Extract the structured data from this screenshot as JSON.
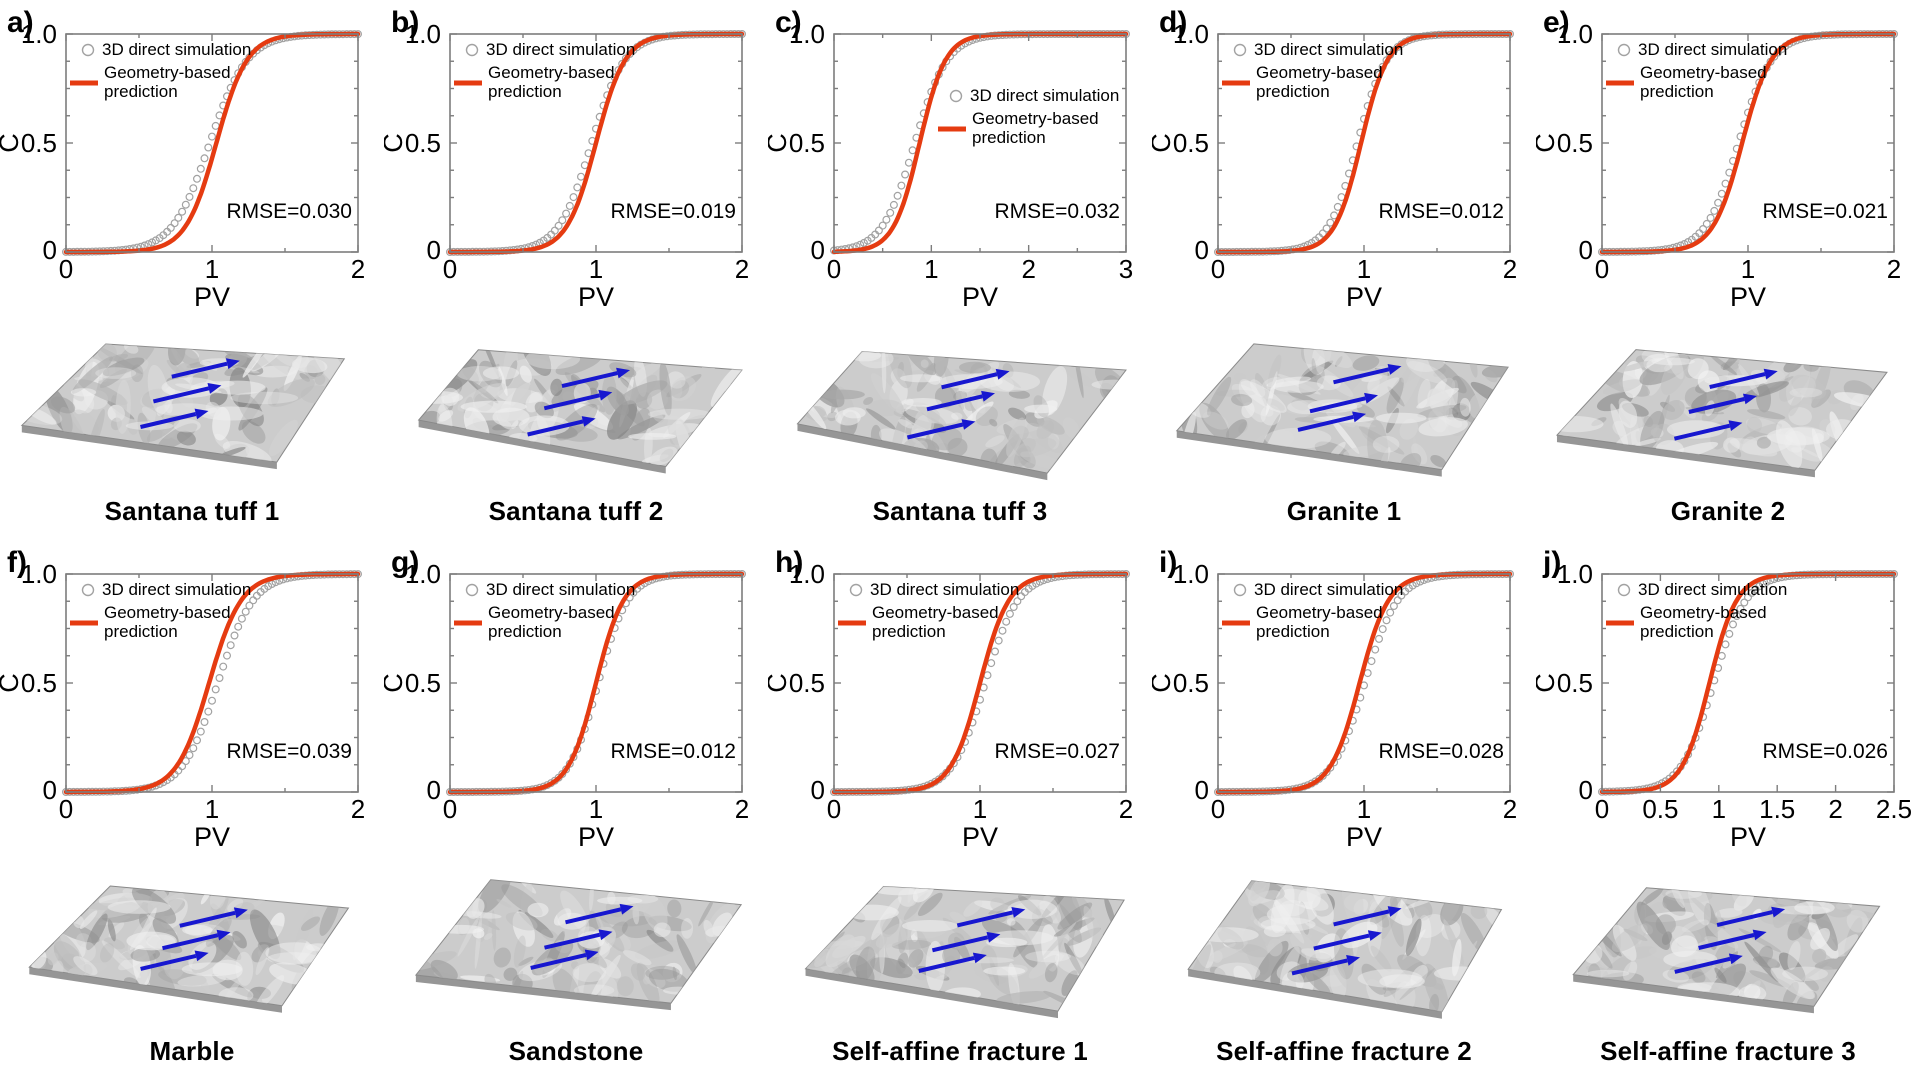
{
  "page": {
    "background": "#ffffff"
  },
  "colors": {
    "prediction_line": "#e53b11",
    "simulation_marker": "#a2a2a2",
    "axis_frame": "#7d7d7d",
    "text": "#000000",
    "flow_arrow": "#1717cf",
    "surface_base": "#cccccc",
    "surface_shadow": "#969696",
    "surface_highlight": "#f0f0f0"
  },
  "legend": {
    "simulation": "3D direct simulation",
    "prediction_line1": "Geometry-based",
    "prediction_line2": "prediction"
  },
  "axis_labels": {
    "x": "PV",
    "y": "C"
  },
  "chart_data": {
    "type": "line",
    "description": "Ten-panel figure (a-j). Each panel: breakthrough curve C vs PV with two sigmoid series (open gray circles = 3D direct simulation; thick orange-red line = geometry-based prediction), an RMSE annotation, a gray 3D fracture-surface rendering with three blue flow arrows, and a bold specimen name.",
    "shared": {
      "xlabel": "PV",
      "ylabel": "C",
      "ylim": [
        0,
        1
      ],
      "ytick_values": [
        0,
        0.5,
        1
      ],
      "ytick_labels": [
        "0",
        "0.5",
        "1.0"
      ],
      "yminor": [
        0.125,
        0.25,
        0.375,
        0.625,
        0.75,
        0.875
      ],
      "legend_entries": [
        "3D direct simulation",
        "Geometry-based prediction"
      ],
      "grid": false,
      "curve_model": "C(PV) = 1/(1+exp(-k*(PV-x0)))"
    },
    "panels": [
      {
        "letter": "a)",
        "specimen": "Santana tuff 1",
        "rmse": "RMSE=0.030",
        "xlim": [
          0,
          2
        ],
        "xtick_values": [
          0,
          1,
          2
        ],
        "xtick_labels": [
          "0",
          "1",
          "2"
        ],
        "xminor": [
          0.5,
          1.5
        ],
        "legend_pos": "upper-left",
        "prediction": {
          "x0": 1.03,
          "k": 9.5
        },
        "simulation": {
          "x0": 0.985,
          "k": 7.8
        }
      },
      {
        "letter": "b)",
        "specimen": "Santana tuff 2",
        "rmse": "RMSE=0.019",
        "xlim": [
          0,
          2
        ],
        "xtick_values": [
          0,
          1,
          2
        ],
        "xtick_labels": [
          "0",
          "1",
          "2"
        ],
        "xminor": [
          0.5,
          1.5
        ],
        "legend_pos": "upper-left",
        "prediction": {
          "x0": 1.0,
          "k": 10
        },
        "simulation": {
          "x0": 0.97,
          "k": 8.8
        }
      },
      {
        "letter": "c)",
        "specimen": "Santana tuff 3",
        "rmse": "RMSE=0.032",
        "xlim": [
          0,
          3
        ],
        "xtick_values": [
          0,
          1,
          2,
          3
        ],
        "xtick_labels": [
          "0",
          "1",
          "2",
          "3"
        ],
        "xminor": [
          0.5,
          1.5,
          2.5
        ],
        "legend_pos": "mid-right",
        "prediction": {
          "x0": 0.88,
          "k": 7.5
        },
        "simulation": {
          "x0": 0.83,
          "k": 6.0
        }
      },
      {
        "letter": "d)",
        "specimen": "Granite 1",
        "rmse": "RMSE=0.012",
        "xlim": [
          0,
          2
        ],
        "xtick_values": [
          0,
          1,
          2
        ],
        "xtick_labels": [
          "0",
          "1",
          "2"
        ],
        "xminor": [
          0.5,
          1.5
        ],
        "legend_pos": "upper-left",
        "prediction": {
          "x0": 0.98,
          "k": 11
        },
        "simulation": {
          "x0": 0.955,
          "k": 10
        }
      },
      {
        "letter": "e)",
        "specimen": "Granite 2",
        "rmse": "RMSE=0.021",
        "xlim": [
          0,
          2
        ],
        "xtick_values": [
          0,
          1,
          2
        ],
        "xtick_labels": [
          "0",
          "1",
          "2"
        ],
        "xminor": [
          0.5,
          1.5
        ],
        "legend_pos": "upper-left",
        "prediction": {
          "x0": 0.96,
          "k": 10
        },
        "simulation": {
          "x0": 0.935,
          "k": 8.8
        }
      },
      {
        "letter": "f)",
        "specimen": "Marble",
        "rmse": "RMSE=0.039",
        "xlim": [
          0,
          2
        ],
        "xtick_values": [
          0,
          1,
          2
        ],
        "xtick_labels": [
          "0",
          "1",
          "2"
        ],
        "xminor": [
          0.5,
          1.5
        ],
        "legend_pos": "upper-left",
        "prediction": {
          "x0": 0.98,
          "k": 9
        },
        "simulation": {
          "x0": 1.04,
          "k": 8.2
        }
      },
      {
        "letter": "g)",
        "specimen": "Sandstone",
        "rmse": "RMSE=0.012",
        "xlim": [
          0,
          2
        ],
        "xtick_values": [
          0,
          1,
          2
        ],
        "xtick_labels": [
          "0",
          "1",
          "2"
        ],
        "xminor": [
          0.5,
          1.5
        ],
        "legend_pos": "upper-left",
        "prediction": {
          "x0": 1.0,
          "k": 10.5
        },
        "simulation": {
          "x0": 1.015,
          "k": 9.8
        }
      },
      {
        "letter": "h)",
        "specimen": "Self-affine fracture 1",
        "rmse": "RMSE=0.027",
        "xlim": [
          0,
          2
        ],
        "xtick_values": [
          0,
          1,
          2
        ],
        "xtick_labels": [
          "0",
          "1",
          "2"
        ],
        "xminor": [
          0.5,
          1.5
        ],
        "legend_pos": "upper-left",
        "prediction": {
          "x0": 1.0,
          "k": 10
        },
        "simulation": {
          "x0": 1.035,
          "k": 8.8
        }
      },
      {
        "letter": "i)",
        "specimen": "Self-affine fracture 2",
        "rmse": "RMSE=0.028",
        "xlim": [
          0,
          2
        ],
        "xtick_values": [
          0,
          1,
          2
        ],
        "xtick_labels": [
          "0",
          "1",
          "2"
        ],
        "xminor": [
          0.5,
          1.5
        ],
        "legend_pos": "upper-left",
        "prediction": {
          "x0": 0.97,
          "k": 10
        },
        "simulation": {
          "x0": 1.005,
          "k": 8.8
        }
      },
      {
        "letter": "j)",
        "specimen": "Self-affine fracture 3",
        "rmse": "RMSE=0.026",
        "xlim": [
          0,
          2.5
        ],
        "xtick_values": [
          0,
          0.5,
          1,
          1.5,
          2,
          2.5
        ],
        "xtick_labels": [
          "0",
          "0.5",
          "1",
          "1.5",
          "2",
          "2.5"
        ],
        "xminor": [],
        "legend_pos": "upper-left",
        "prediction": {
          "x0": 0.92,
          "k": 8.5
        },
        "simulation": {
          "x0": 0.955,
          "k": 7.2
        }
      }
    ]
  }
}
